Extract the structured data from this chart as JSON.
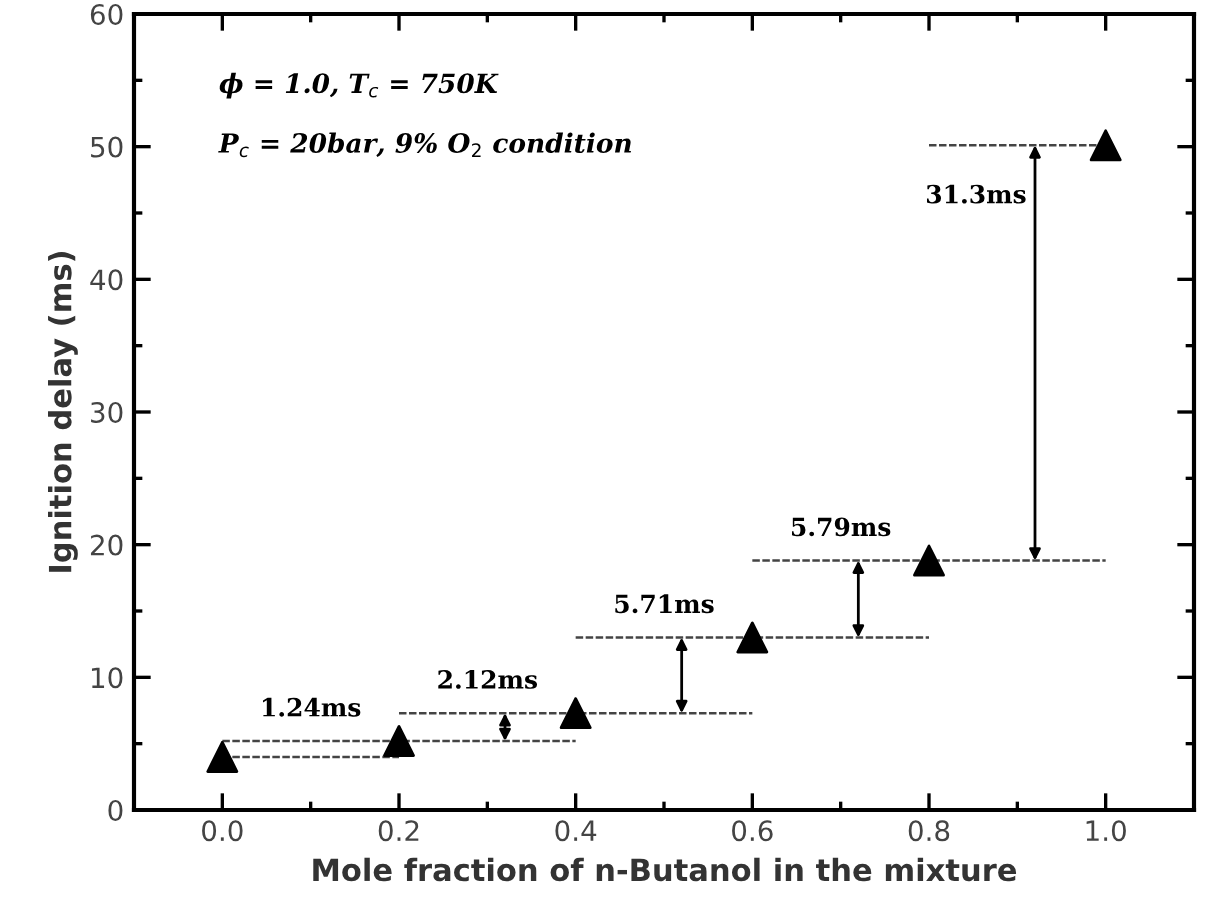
{
  "chart_data": {
    "type": "scatter",
    "xlabel": "Mole fraction of n-Butanol in the mixture",
    "ylabel": "Ignition delay (ms)",
    "x": [
      0.0,
      0.2,
      0.4,
      0.6,
      0.8,
      1.0
    ],
    "series": [
      {
        "color": "#000000",
        "values": [
          4.0,
          5.2,
          7.3,
          13.0,
          18.8,
          50.1
        ],
        "marker": "triangle"
      },
      {
        "type": "line",
        "color": "#444444",
        "line_style": "dashed",
        "x": [
          0.0,
          0.2
        ],
        "values": [
          4.0,
          4.0
        ]
      },
      {
        "type": "line",
        "color": "#444444",
        "line_style": "dashed",
        "x": [
          0.0,
          0.4
        ],
        "values": [
          5.2,
          5.2
        ]
      },
      {
        "type": "line",
        "color": "#444444",
        "line_style": "dashed",
        "x": [
          0.2,
          0.6
        ],
        "values": [
          7.3,
          7.3
        ]
      },
      {
        "type": "line",
        "color": "#444444",
        "line_style": "dashed",
        "x": [
          0.4,
          0.8
        ],
        "values": [
          13.0,
          13.0
        ]
      },
      {
        "type": "line",
        "color": "#444444",
        "line_style": "dashed",
        "x": [
          0.6,
          1.0
        ],
        "values": [
          18.8,
          18.8
        ]
      },
      {
        "type": "line",
        "color": "#444444",
        "line_style": "dashed",
        "x": [
          0.8,
          1.0
        ],
        "values": [
          50.1,
          50.1
        ]
      }
    ],
    "xlim": [
      -0.1,
      1.1
    ],
    "ylim": [
      0,
      60
    ],
    "xticks": [
      {
        "value": 0.0,
        "label": "0.0"
      },
      0.2,
      0.4,
      0.6,
      0.8,
      {
        "value": 1.0,
        "label": "1.0"
      }
    ],
    "yticks": [
      0,
      10,
      20,
      30,
      40,
      50,
      60
    ],
    "annotations": [
      "ϕ = 1.0, T$_{c}$ = 750K",
      "P$_{c}$ = 20bar, 9% O$_{2}$ condition",
      "1.24ms",
      {
        "text": "2.12ms",
        "x": 0.32,
        "y": 7.3
      },
      {
        "text": "5.71ms",
        "x": 0.52,
        "y": 13.0
      },
      {
        "text": "5.79ms",
        "x": 0.72,
        "y": 18.8
      },
      {
        "text": "31.3ms",
        "x": 0.92,
        "y": 50.1
      }
    ]
  }
}
